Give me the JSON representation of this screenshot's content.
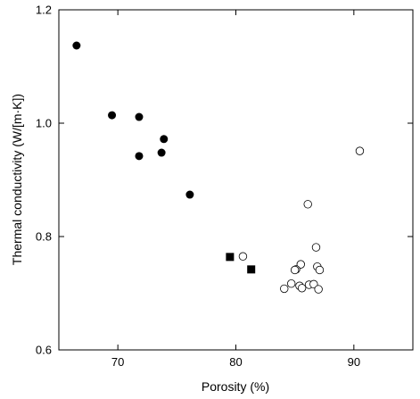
{
  "chart_data": {
    "type": "scatter",
    "title": "",
    "xlabel": "Porosity (%)",
    "ylabel": "Thermal conductivity (W/[m·K])",
    "xlim": [
      65,
      95
    ],
    "ylim": [
      0.6,
      1.2
    ],
    "xticks": [
      70,
      80,
      90
    ],
    "yticks": [
      0.6,
      0.8,
      1.0,
      1.2
    ],
    "ytick_labels": [
      "0.6",
      "0.8",
      "1.0",
      "1.2"
    ],
    "grid": false,
    "series": [
      {
        "marker": "filled-circle",
        "points": [
          [
            66.5,
            1.137
          ],
          [
            69.5,
            1.014
          ],
          [
            71.8,
            1.011
          ],
          [
            73.9,
            0.972
          ],
          [
            71.8,
            0.942
          ],
          [
            73.7,
            0.948
          ],
          [
            76.1,
            0.874
          ]
        ]
      },
      {
        "marker": "filled-square",
        "points": [
          [
            79.5,
            0.764
          ],
          [
            81.3,
            0.742
          ]
        ]
      },
      {
        "marker": "open-circle",
        "points": [
          [
            90.5,
            0.951
          ],
          [
            86.1,
            0.857
          ],
          [
            86.8,
            0.781
          ],
          [
            80.6,
            0.765
          ],
          [
            85.5,
            0.751
          ],
          [
            86.9,
            0.747
          ],
          [
            85.1,
            0.742
          ],
          [
            85.0,
            0.741
          ],
          [
            87.1,
            0.741
          ],
          [
            84.7,
            0.717
          ],
          [
            86.2,
            0.715
          ],
          [
            86.6,
            0.716
          ],
          [
            85.4,
            0.713
          ],
          [
            85.6,
            0.709
          ],
          [
            84.1,
            0.708
          ],
          [
            87.0,
            0.707
          ]
        ]
      }
    ]
  }
}
